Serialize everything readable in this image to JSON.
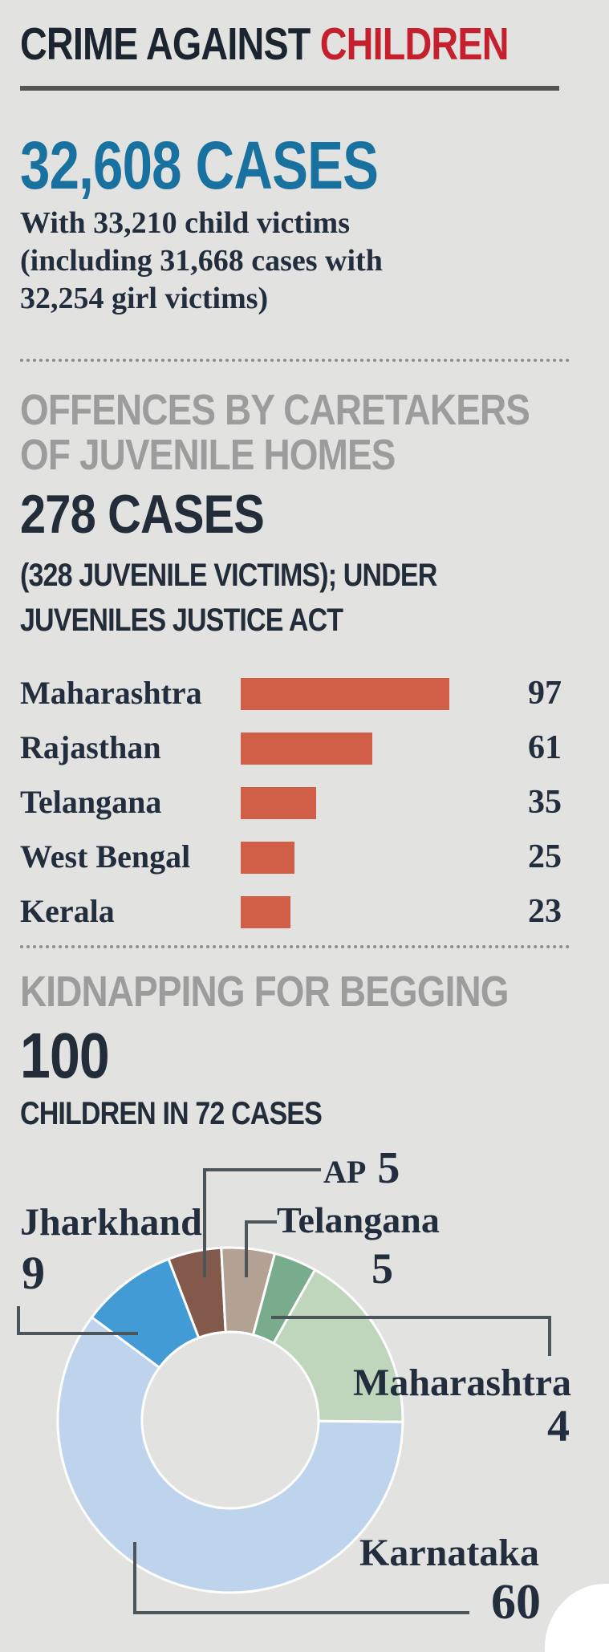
{
  "title": {
    "black": "CRIME AGAINST ",
    "red": "CHILDREN"
  },
  "overview": {
    "big_number": "32,608 CASES",
    "description_lines": [
      "With 33,210 child victims",
      "(including 31,668 cases with",
      "32,254 girl victims)"
    ]
  },
  "caretakers": {
    "heading_line1": "OFFENCES BY CARETAKERS",
    "heading_line2": "OF JUVENILE HOMES",
    "big_number": "278 CASES",
    "sub_line1": "(328 JUVENILE VICTIMS); UNDER",
    "sub_line2": "JUVENILES JUSTICE ACT"
  },
  "kidnapping": {
    "heading": "KIDNAPPING FOR BEGGING",
    "big_number": "100",
    "sub": "CHILDREN IN 72 CASES"
  },
  "colors": {
    "background": "#e2e2e0",
    "title_dark": "#1c2430",
    "title_red": "#c4202e",
    "big_blue": "#19719f",
    "section_gray": "#9c9c9c",
    "text_dark": "#222d3d",
    "bar_orange": "#d15f47",
    "connector_gray": "#4b555a"
  },
  "chart_data": [
    {
      "type": "bar",
      "title": "OFFENCES BY CARETAKERS OF JUVENILE HOMES",
      "orientation": "horizontal",
      "categories": [
        "Maharashtra",
        "Rajasthan",
        "Telangana",
        "West Bengal",
        "Kerala"
      ],
      "values": [
        97,
        61,
        35,
        25,
        23
      ],
      "xlim": [
        0,
        97
      ],
      "bar_color": "#d15f47",
      "grid": false
    },
    {
      "type": "pie",
      "title": "KIDNAPPING FOR BEGGING",
      "donut": true,
      "hole_ratio": 0.51,
      "start_angle_deg": -21,
      "segments": [
        {
          "name": "AP",
          "value": 5,
          "color": "#82594a"
        },
        {
          "name": "Telangana",
          "value": 5,
          "color": "#b3a294"
        },
        {
          "name": "Maharashtra",
          "value": 4,
          "color": "#79ab8d"
        },
        {
          "name": "",
          "value": 17,
          "color": "#c0d6bc"
        },
        {
          "name": "Karnataka",
          "value": 60,
          "color": "#bed4ed"
        },
        {
          "name": "Jharkhand",
          "value": 9,
          "color": "#429bd5"
        }
      ]
    }
  ]
}
